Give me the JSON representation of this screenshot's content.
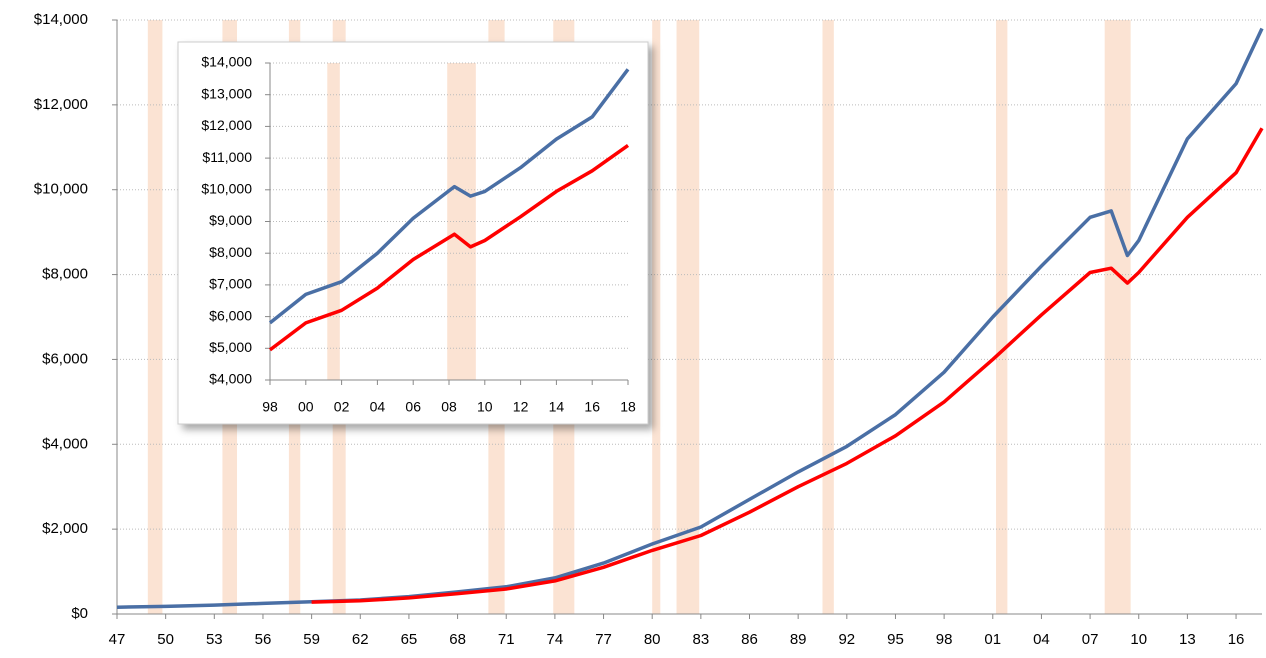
{
  "chart_data": [
    {
      "type": "line",
      "x": [
        1947,
        1950,
        1953,
        1956,
        1959,
        1962,
        1965,
        1968,
        1971,
        1974,
        1977,
        1980,
        1983,
        1986,
        1989,
        1992,
        1995,
        1998,
        2001,
        2004,
        2007,
        2008.3,
        2009.3,
        2010,
        2013,
        2016,
        2017.6
      ],
      "series": [
        {
          "color": "#4a6fa5",
          "values": [
            160,
            180,
            210,
            250,
            290,
            330,
            410,
            520,
            640,
            850,
            1200,
            1650,
            2050,
            2700,
            3350,
            3950,
            4700,
            5700,
            7000,
            8200,
            9350,
            9500,
            8450,
            8800,
            11200,
            12500,
            13800
          ]
        },
        {
          "color": "#ff0000",
          "values": [
            null,
            null,
            null,
            null,
            280,
            310,
            380,
            480,
            590,
            780,
            1100,
            1500,
            1850,
            2400,
            3000,
            3550,
            4200,
            5000,
            6000,
            7050,
            8050,
            8150,
            7800,
            8050,
            9350,
            10400,
            11450
          ]
        }
      ],
      "recessions": [
        [
          1948.9,
          1949.8
        ],
        [
          1953.5,
          1954.4
        ],
        [
          1957.6,
          1958.3
        ],
        [
          1960.3,
          1961.1
        ],
        [
          1969.9,
          1970.9
        ],
        [
          1973.9,
          1975.2
        ],
        [
          1980.0,
          1980.5
        ],
        [
          1981.5,
          1982.9
        ],
        [
          1990.5,
          1991.2
        ],
        [
          2001.2,
          2001.9
        ],
        [
          2007.9,
          2009.5
        ]
      ],
      "recession_color": "#fbe3d3",
      "xlim": [
        1947,
        2017.6
      ],
      "xticks": [
        {
          "value": 1947,
          "label": "47"
        },
        {
          "value": 1950,
          "label": "50"
        },
        {
          "value": 1953,
          "label": "53"
        },
        {
          "value": 1956,
          "label": "56"
        },
        {
          "value": 1959,
          "label": "59"
        },
        {
          "value": 1962,
          "label": "62"
        },
        {
          "value": 1965,
          "label": "65"
        },
        {
          "value": 1968,
          "label": "68"
        },
        {
          "value": 1971,
          "label": "71"
        },
        {
          "value": 1974,
          "label": "74"
        },
        {
          "value": 1977,
          "label": "77"
        },
        {
          "value": 1980,
          "label": "80"
        },
        {
          "value": 1983,
          "label": "83"
        },
        {
          "value": 1986,
          "label": "86"
        },
        {
          "value": 1989,
          "label": "89"
        },
        {
          "value": 1992,
          "label": "92"
        },
        {
          "value": 1995,
          "label": "95"
        },
        {
          "value": 1998,
          "label": "98"
        },
        {
          "value": 2001,
          "label": "01"
        },
        {
          "value": 2004,
          "label": "04"
        },
        {
          "value": 2007,
          "label": "07"
        },
        {
          "value": 2010,
          "label": "10"
        },
        {
          "value": 2013,
          "label": "13"
        },
        {
          "value": 2016,
          "label": "16"
        }
      ],
      "ylim": [
        0,
        14000
      ],
      "yticks": [
        {
          "value": 0,
          "label": "$0"
        },
        {
          "value": 2000,
          "label": "$2,000"
        },
        {
          "value": 4000,
          "label": "$4,000"
        },
        {
          "value": 6000,
          "label": "$6,000"
        },
        {
          "value": 8000,
          "label": "$8,000"
        },
        {
          "value": 10000,
          "label": "$10,000"
        },
        {
          "value": 12000,
          "label": "$12,000"
        },
        {
          "value": 14000,
          "label": "$14,000"
        }
      ],
      "grid": true
    },
    {
      "type": "line",
      "x": [
        1998,
        2000,
        2002,
        2004,
        2006,
        2008.3,
        2009.2,
        2010,
        2012,
        2014,
        2016,
        2018
      ],
      "series": [
        {
          "color": "#4a6fa5",
          "values": [
            5800,
            6700,
            7100,
            8000,
            9100,
            10100,
            9800,
            9950,
            10700,
            11600,
            12300,
            13800
          ]
        },
        {
          "color": "#ff0000",
          "values": [
            4950,
            5800,
            6200,
            6900,
            7800,
            8600,
            8200,
            8400,
            9150,
            9950,
            10600,
            11400
          ]
        }
      ],
      "recessions": [
        [
          2001.2,
          2001.9
        ],
        [
          2007.9,
          2009.5
        ]
      ],
      "recession_color": "#fbe3d3",
      "xlim": [
        1998,
        2018
      ],
      "xticks": [
        {
          "value": 1998,
          "label": "98"
        },
        {
          "value": 2000,
          "label": "00"
        },
        {
          "value": 2002,
          "label": "02"
        },
        {
          "value": 2004,
          "label": "04"
        },
        {
          "value": 2006,
          "label": "06"
        },
        {
          "value": 2008,
          "label": "08"
        },
        {
          "value": 2010,
          "label": "10"
        },
        {
          "value": 2012,
          "label": "12"
        },
        {
          "value": 2014,
          "label": "14"
        },
        {
          "value": 2016,
          "label": "16"
        },
        {
          "value": 2018,
          "label": "18"
        }
      ],
      "ylim": [
        4000,
        14000
      ],
      "yticks": [
        {
          "value": 4000,
          "label": "$4,000"
        },
        {
          "value": 5000,
          "label": "$5,000"
        },
        {
          "value": 6000,
          "label": "$6,000"
        },
        {
          "value": 7000,
          "label": "$7,000"
        },
        {
          "value": 8000,
          "label": "$8,000"
        },
        {
          "value": 9000,
          "label": "$9,000"
        },
        {
          "value": 10000,
          "label": "$10,000"
        },
        {
          "value": 11000,
          "label": "$11,000"
        },
        {
          "value": 12000,
          "label": "$12,000"
        },
        {
          "value": 13000,
          "label": "$13,000"
        },
        {
          "value": 14000,
          "label": "$14,000"
        }
      ],
      "grid": true
    }
  ]
}
